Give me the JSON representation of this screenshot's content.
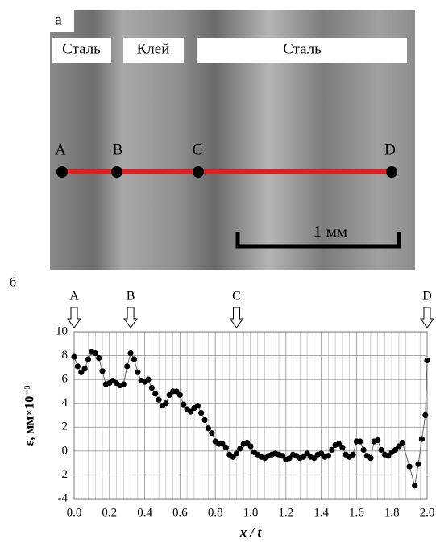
{
  "panel_a": {
    "label": "а",
    "regions": [
      "Сталь",
      "Клей",
      "Сталь"
    ],
    "points": [
      "A",
      "B",
      "C",
      "D"
    ],
    "scale_bar": "1 мм"
  },
  "chart_data": {
    "type": "scatter",
    "panel_label": "б",
    "xlabel": "x / t",
    "ylabel": "ε, мм×10⁻³",
    "xlim": [
      0,
      2
    ],
    "ylim": [
      -4,
      10
    ],
    "xticks": [
      {
        "value": 0,
        "label": "0.0"
      },
      {
        "value": 0.2,
        "label": "0.2"
      },
      {
        "value": 0.4,
        "label": "0.4"
      },
      {
        "value": 0.6,
        "label": "0.6"
      },
      {
        "value": 0.8,
        "label": "0.8"
      },
      {
        "value": 1,
        "label": "1.0"
      },
      {
        "value": 1.2,
        "label": "1.2"
      },
      {
        "value": 1.4,
        "label": "1.4"
      },
      {
        "value": 1.6,
        "label": "1.6"
      },
      {
        "value": 1.8,
        "label": "1.8"
      },
      {
        "value": 2,
        "label": "2.0"
      }
    ],
    "yticks": [
      -4,
      -2,
      0,
      2,
      4,
      6,
      8,
      10
    ],
    "grid": true,
    "annotations": [
      {
        "text": "A",
        "x": 0
      },
      {
        "text": "B",
        "x": 0.32
      },
      {
        "text": "C",
        "x": 0.92
      },
      {
        "text": "D",
        "x": 2
      }
    ],
    "x": [
      0,
      0.02,
      0.04,
      0.06,
      0.08,
      0.1,
      0.12,
      0.14,
      0.16,
      0.18,
      0.2,
      0.22,
      0.24,
      0.26,
      0.28,
      0.3,
      0.32,
      0.34,
      0.36,
      0.38,
      0.4,
      0.42,
      0.44,
      0.46,
      0.48,
      0.5,
      0.52,
      0.54,
      0.56,
      0.58,
      0.6,
      0.62,
      0.64,
      0.66,
      0.68,
      0.7,
      0.72,
      0.74,
      0.76,
      0.78,
      0.8,
      0.82,
      0.84,
      0.86,
      0.88,
      0.9,
      0.92,
      0.94,
      0.96,
      0.98,
      1,
      1.02,
      1.04,
      1.06,
      1.08,
      1.1,
      1.12,
      1.14,
      1.16,
      1.18,
      1.2,
      1.22,
      1.24,
      1.26,
      1.28,
      1.3,
      1.32,
      1.34,
      1.36,
      1.38,
      1.4,
      1.42,
      1.44,
      1.46,
      1.48,
      1.5,
      1.52,
      1.54,
      1.56,
      1.58,
      1.6,
      1.62,
      1.64,
      1.66,
      1.68,
      1.7,
      1.72,
      1.74,
      1.76,
      1.78,
      1.8,
      1.82,
      1.84,
      1.86,
      1.9,
      1.93,
      1.95,
      1.97,
      1.99,
      2
    ],
    "series": [
      {
        "color": "#000000",
        "values": [
          7.9,
          7.1,
          6.6,
          6.9,
          7.7,
          8.3,
          8.2,
          7.8,
          6.7,
          5.6,
          5.7,
          5.9,
          5.7,
          5.5,
          5.6,
          7.1,
          8.2,
          7.7,
          6.6,
          5.9,
          5.8,
          6.0,
          5.3,
          4.8,
          4.3,
          3.8,
          4.0,
          4.7,
          5.0,
          5.0,
          4.7,
          3.9,
          3.5,
          3.3,
          3.6,
          3.8,
          3.2,
          2.6,
          1.9,
          1.5,
          0.8,
          0.6,
          0.6,
          0.3,
          -0.3,
          -0.5,
          -0.2,
          0.2,
          0.6,
          0.7,
          0.4,
          -0.1,
          -0.3,
          -0.5,
          -0.6,
          -0.4,
          -0.3,
          -0.2,
          -0.3,
          -0.4,
          -0.7,
          -0.6,
          -0.3,
          -0.4,
          -0.6,
          -0.5,
          -0.2,
          -0.5,
          -0.6,
          -0.3,
          -0.2,
          -0.5,
          -0.4,
          0.1,
          0.5,
          0.6,
          0.3,
          -0.3,
          -0.5,
          -0.3,
          0.8,
          0.8,
          0.1,
          -0.4,
          -0.6,
          0.8,
          0.9,
          0.1,
          -0.3,
          -0.4,
          -0.1,
          0.1,
          0.4,
          0.7,
          -1.3,
          -2.9,
          -1.1,
          1.0,
          3.0,
          7.6
        ]
      }
    ]
  }
}
